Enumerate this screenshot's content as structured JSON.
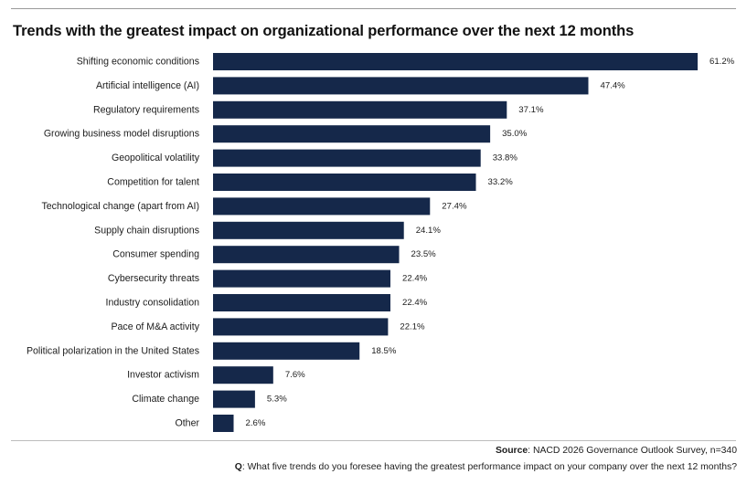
{
  "title": "Trends with the greatest impact on organizational performance over the next 12 months",
  "footer": {
    "source_label": "Source",
    "source_text": ": NACD 2026 Governance Outlook Survey, n=340",
    "question_label": "Q",
    "question_text": ": What five trends do you foresee having the greatest performance impact on your company over the next 12 months?"
  },
  "colors": {
    "bar": "#15284a",
    "rule": "#9a9a9a"
  },
  "chart_data": {
    "type": "bar",
    "orientation": "horizontal",
    "categories": [
      "Shifting economic conditions",
      "Artificial intelligence (AI)",
      "Regulatory requirements",
      "Growing business model disruptions",
      "Geopolitical volatility",
      "Competition for talent",
      "Technological change (apart from AI)",
      "Supply chain disruptions",
      "Consumer spending",
      "Cybersecurity threats",
      "Industry consolidation",
      "Pace of M&A activity",
      "Political polarization in the United States",
      "Investor activism",
      "Climate change",
      "Other"
    ],
    "values": [
      61.2,
      47.4,
      37.1,
      35.0,
      33.8,
      33.2,
      27.4,
      24.1,
      23.5,
      22.4,
      22.4,
      22.1,
      18.5,
      7.6,
      5.3,
      2.6
    ],
    "value_labels": [
      "61.2%",
      "47.4%",
      "37.1%",
      "35.0%",
      "33.8%",
      "33.2%",
      "27.4%",
      "24.1%",
      "23.5%",
      "22.4%",
      "22.4%",
      "22.1%",
      "18.5%",
      "7.6%",
      "5.3%",
      "2.6%"
    ],
    "xlim": [
      0,
      61.2
    ],
    "grid": false,
    "legend": "none"
  }
}
